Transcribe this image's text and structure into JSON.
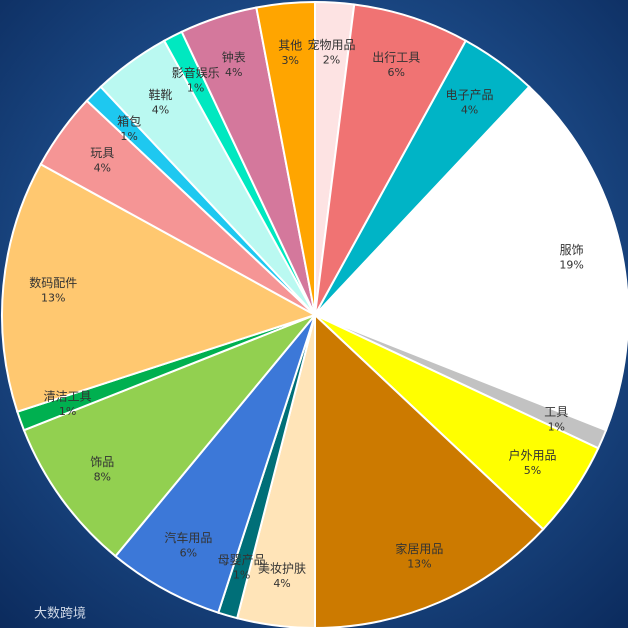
{
  "chart_data": {
    "type": "pie",
    "categories": [
      "宠物用品",
      "出行工具",
      "电子产品",
      "服饰",
      "工具",
      "户外用品",
      "家居用品",
      "美妆护肤",
      "母婴产品",
      "汽车用品",
      "饰品",
      "清洁工具",
      "数码配件",
      "玩具",
      "箱包",
      "鞋靴",
      "影音娱乐",
      "钟表",
      "其他"
    ],
    "values": [
      2,
      6,
      4,
      19,
      1,
      5,
      13,
      4,
      1,
      6,
      8,
      1,
      13,
      4,
      1,
      4,
      1,
      4,
      3
    ],
    "value_labels": [
      "2%",
      "6%",
      "4%",
      "19%",
      "1%",
      "5%",
      "13%",
      "4%",
      "1%",
      "6%",
      "8%",
      "1%",
      "13%",
      "4%",
      "1%",
      "4%",
      "1%",
      "4%",
      "3%"
    ],
    "colors": [
      "#fde3e3",
      "#f07373",
      "#00b4c6",
      "#ffffff",
      "#c2c2c2",
      "#ffff00",
      "#cc7a00",
      "#ffe4b8",
      "#006f78",
      "#3c78d8",
      "#92d050",
      "#00b050",
      "#ffc870",
      "#f59595",
      "#1ec8f0",
      "#baf9f1",
      "#00e8c0",
      "#d4789c",
      "#ffa500"
    ],
    "watermark": "大数跨境"
  }
}
